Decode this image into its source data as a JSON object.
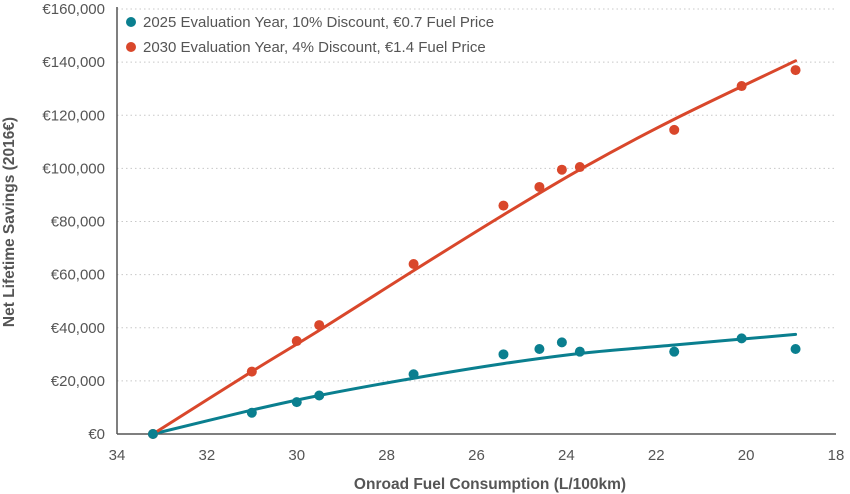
{
  "chart_data": {
    "type": "scatter",
    "title": "",
    "xlabel": "Onroad Fuel Consumption (L/100km)",
    "ylabel": "Net Lifetime Savings (2016€)",
    "xlim": [
      34,
      18
    ],
    "x_reversed": true,
    "ylim": [
      0,
      160000
    ],
    "x_ticks": [
      "34",
      "32",
      "30",
      "28",
      "26",
      "24",
      "22",
      "20",
      "18"
    ],
    "x_tick_values": [
      34,
      32,
      30,
      28,
      26,
      24,
      22,
      20,
      18
    ],
    "y_ticks": [
      "€0",
      "€20,000",
      "€40,000",
      "€60,000",
      "€80,000",
      "€100,000",
      "€120,000",
      "€140,000",
      "€160,000"
    ],
    "y_tick_values": [
      0,
      20000,
      40000,
      60000,
      80000,
      100000,
      120000,
      140000,
      160000
    ],
    "grid": "horizontal dotted",
    "legend_position": "top-left",
    "series": [
      {
        "name": "2025 Evaluation Year, 10% Discount, €0.7 Fuel Price",
        "color": "#0a7f8f",
        "x": [
          33.2,
          31.0,
          30.0,
          29.5,
          27.4,
          25.4,
          24.6,
          24.1,
          23.7,
          21.6,
          20.1,
          18.9
        ],
        "y": [
          0,
          8000,
          12000,
          14500,
          22500,
          30000,
          32000,
          34500,
          31000,
          31000,
          36000,
          32000
        ],
        "trendline": {
          "x": [
            33.2,
            31.0,
            29.5,
            27.4,
            25.4,
            23.6,
            21.6,
            18.9
          ],
          "y": [
            0,
            9000,
            14500,
            21000,
            26500,
            30500,
            33500,
            37500
          ]
        }
      },
      {
        "name": "2030 Evaluation Year, 4% Discount, €1.4 Fuel Price",
        "color": "#d9472b",
        "x": [
          33.2,
          31.0,
          30.0,
          29.5,
          27.4,
          25.4,
          24.6,
          24.1,
          23.7,
          21.6,
          20.1,
          18.9
        ],
        "y": [
          0,
          23500,
          35000,
          41000,
          64000,
          86000,
          93000,
          99500,
          100500,
          114500,
          131000,
          137000
        ],
        "trendline": {
          "x": [
            33.2,
            31.0,
            29.5,
            27.4,
            25.4,
            23.6,
            21.6,
            18.9
          ],
          "y": [
            0,
            23500,
            39000,
            61500,
            82500,
            100500,
            118500,
            140500
          ]
        }
      }
    ]
  }
}
